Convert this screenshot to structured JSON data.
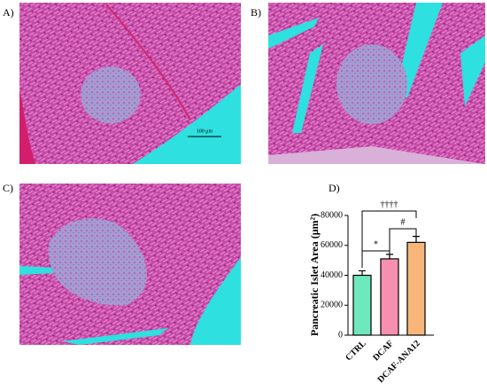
{
  "panels": {
    "a": "A)",
    "b": "B)",
    "c": "C)",
    "d": "D)"
  },
  "scale_bar": "100 μm",
  "chart_data": {
    "type": "bar",
    "y_label": "Pancreatic Islet Area (μm²)",
    "categories": [
      "CTRL",
      "DCAF",
      "DCAF-ANA12"
    ],
    "values": [
      40000,
      51000,
      62000
    ],
    "errors": [
      3000,
      3000,
      4000
    ],
    "colors": [
      "#6ee8bd",
      "#f78fb0",
      "#f8b67a"
    ],
    "ylim": [
      0,
      80000
    ],
    "yticks": [
      0,
      20000,
      40000,
      60000,
      80000
    ],
    "annotations": [
      "*",
      "#",
      "††††"
    ]
  }
}
